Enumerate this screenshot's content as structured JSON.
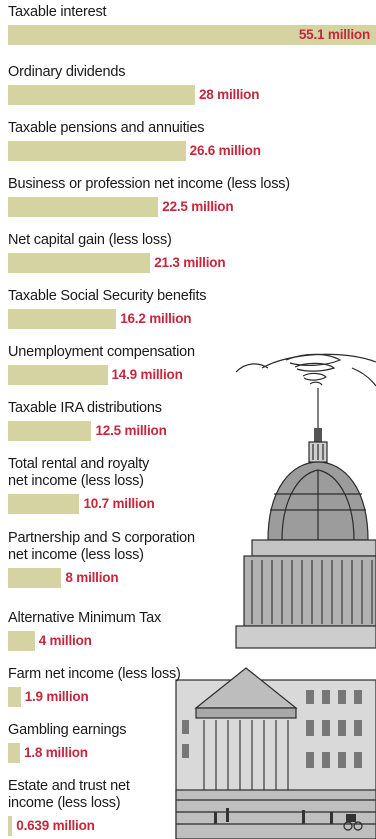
{
  "chart_data": {
    "type": "bar",
    "orientation": "horizontal",
    "categories": [
      "Taxable interest",
      "Ordinary dividends",
      "Taxable pensions and annuities",
      "Business or profession net income (less loss)",
      "Net capital gain (less loss)",
      "Taxable Social Security benefits",
      "Unemployment compensation",
      "Taxable IRA distributions",
      "Total rental and royalty\nnet income (less loss)",
      "Partnership and S corporation\nnet income (less loss)",
      "Alternative Minimum Tax",
      "Farm net income (less loss)",
      "Gambling earnings",
      "Estate and trust net\nincome (less loss)"
    ],
    "values": [
      55.1,
      28,
      26.6,
      22.5,
      21.3,
      16.2,
      14.9,
      12.5,
      10.7,
      8,
      4,
      1.9,
      1.8,
      0.639
    ],
    "value_labels": [
      "55.1 million",
      "28 million",
      "26.6 million",
      "22.5 million",
      "21.3 million",
      "16.2 million",
      "14.9 million",
      "12.5 million",
      "10.7 million",
      "8 million",
      "4 million",
      "1.9 million",
      "1.8 million",
      "0.639 million"
    ],
    "xlim": [
      0,
      55.1
    ],
    "colors": {
      "bar": "#d6d3a3",
      "value_text": "#c5283d",
      "label_text": "#1a1a1a"
    }
  }
}
